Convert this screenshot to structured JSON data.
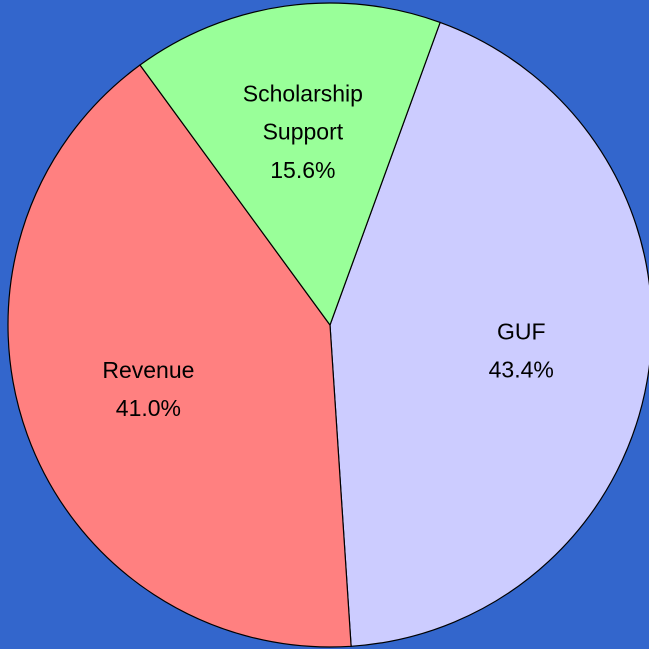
{
  "chart_data": {
    "type": "pie",
    "categories": [
      "GUF",
      "Revenue",
      "Scholarship Support"
    ],
    "values": [
      43.4,
      41.0,
      15.6
    ],
    "value_labels": [
      "43.4%",
      "41.0%",
      "15.6%"
    ],
    "colors": [
      "#ccccff",
      "#ff8080",
      "#99ff99"
    ],
    "background": "#3366cc"
  }
}
